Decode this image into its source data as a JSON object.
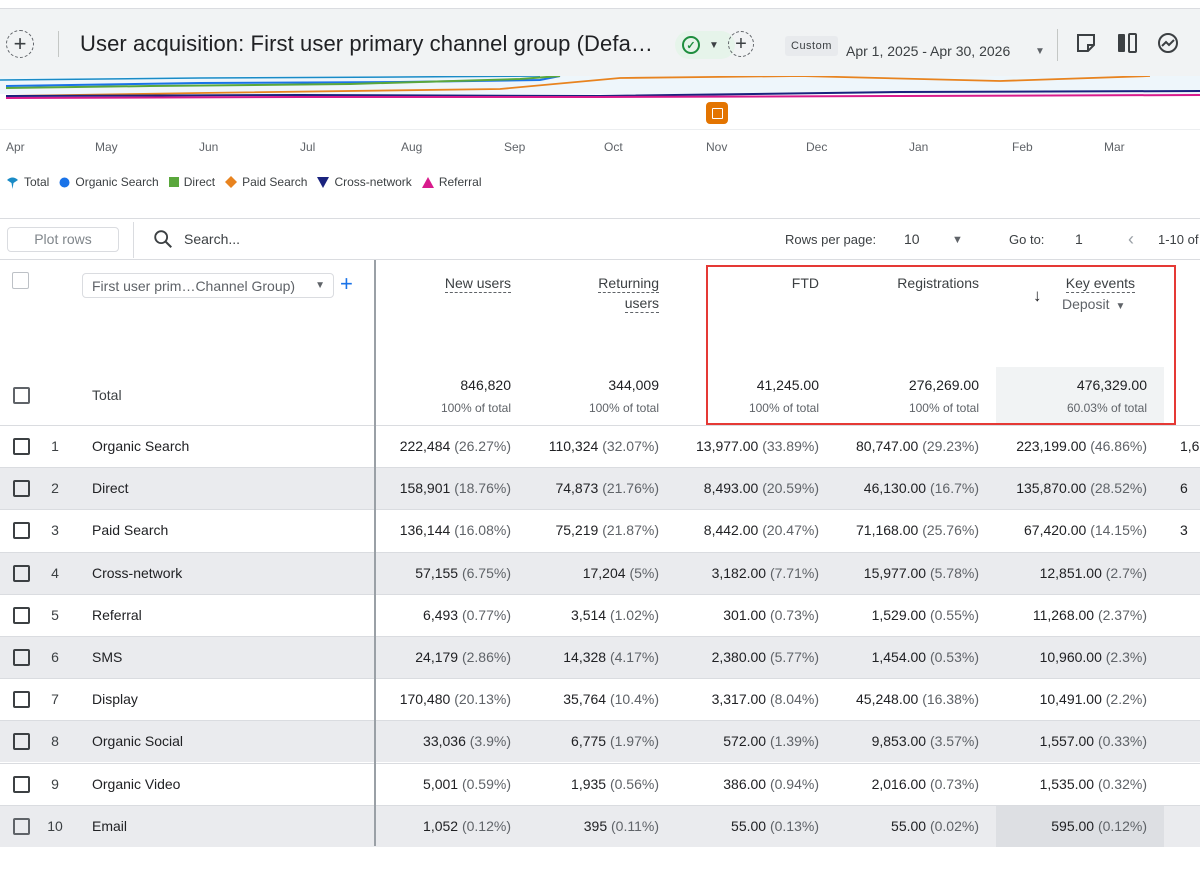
{
  "header": {
    "title": "User acquisition: First user primary channel group (Defa…",
    "date_chip": "Custom",
    "date_range": "Apr 1, 2025 - Apr 30, 2026"
  },
  "chart": {
    "months": [
      "Apr",
      "May",
      "Jun",
      "Jul",
      "Aug",
      "Sep",
      "Oct",
      "Nov",
      "Dec",
      "Jan",
      "Feb",
      "Mar"
    ],
    "legend": [
      {
        "name": "Total",
        "color": "#1a8bc6",
        "marker": "pin"
      },
      {
        "name": "Organic Search",
        "color": "#1a73e8",
        "marker": "circle"
      },
      {
        "name": "Direct",
        "color": "#5aa73c",
        "marker": "square"
      },
      {
        "name": "Paid Search",
        "color": "#e8831f",
        "marker": "diamond"
      },
      {
        "name": "Cross-network",
        "color": "#1a237e",
        "marker": "triangle-down"
      },
      {
        "name": "Referral",
        "color": "#d81b8c",
        "marker": "triangle-up"
      }
    ]
  },
  "toolbar": {
    "plot_rows": "Plot rows",
    "search_placeholder": "Search...",
    "rows_per_page_label": "Rows per page:",
    "rows_per_page_value": "10",
    "goto_label": "Go to:",
    "goto_value": "1",
    "page_range": "1-10 of"
  },
  "table": {
    "dimension_select": "First user prim…Channel Group)",
    "columns": {
      "new_users": "New users",
      "returning_users_1": "Returning",
      "returning_users_2": "users",
      "ftd": "FTD",
      "registrations": "Registrations",
      "key_events": "Key events",
      "key_events_select": "Deposit"
    },
    "total": {
      "label": "Total",
      "new_users": "846,820",
      "new_users_sub": "100% of total",
      "returning_users": "344,009",
      "returning_users_sub": "100% of total",
      "ftd": "41,245.00",
      "ftd_sub": "100% of total",
      "registrations": "276,269.00",
      "registrations_sub": "100% of total",
      "key_events": "476,329.00",
      "key_events_sub": "60.03% of total"
    },
    "rows": [
      {
        "idx": "1",
        "name": "Organic Search",
        "new_users": "222,484",
        "new_users_pct": "(26.27%)",
        "returning": "110,324",
        "returning_pct": "(32.07%)",
        "ftd": "13,977.00",
        "ftd_pct": "(33.89%)",
        "reg": "80,747.00",
        "reg_pct": "(29.23%)",
        "ke": "223,199.00",
        "ke_pct": "(46.86%)",
        "extra": "1,6"
      },
      {
        "idx": "2",
        "name": "Direct",
        "new_users": "158,901",
        "new_users_pct": "(18.76%)",
        "returning": "74,873",
        "returning_pct": "(21.76%)",
        "ftd": "8,493.00",
        "ftd_pct": "(20.59%)",
        "reg": "46,130.00",
        "reg_pct": "(16.7%)",
        "ke": "135,870.00",
        "ke_pct": "(28.52%)",
        "extra": "6"
      },
      {
        "idx": "3",
        "name": "Paid Search",
        "new_users": "136,144",
        "new_users_pct": "(16.08%)",
        "returning": "75,219",
        "returning_pct": "(21.87%)",
        "ftd": "8,442.00",
        "ftd_pct": "(20.47%)",
        "reg": "71,168.00",
        "reg_pct": "(25.76%)",
        "ke": "67,420.00",
        "ke_pct": "(14.15%)",
        "extra": "3"
      },
      {
        "idx": "4",
        "name": "Cross-network",
        "new_users": "57,155",
        "new_users_pct": "(6.75%)",
        "returning": "17,204",
        "returning_pct": "(5%)",
        "ftd": "3,182.00",
        "ftd_pct": "(7.71%)",
        "reg": "15,977.00",
        "reg_pct": "(5.78%)",
        "ke": "12,851.00",
        "ke_pct": "(2.7%)",
        "extra": ""
      },
      {
        "idx": "5",
        "name": "Referral",
        "new_users": "6,493",
        "new_users_pct": "(0.77%)",
        "returning": "3,514",
        "returning_pct": "(1.02%)",
        "ftd": "301.00",
        "ftd_pct": "(0.73%)",
        "reg": "1,529.00",
        "reg_pct": "(0.55%)",
        "ke": "11,268.00",
        "ke_pct": "(2.37%)",
        "extra": ""
      },
      {
        "idx": "6",
        "name": "SMS",
        "new_users": "24,179",
        "new_users_pct": "(2.86%)",
        "returning": "14,328",
        "returning_pct": "(4.17%)",
        "ftd": "2,380.00",
        "ftd_pct": "(5.77%)",
        "reg": "1,454.00",
        "reg_pct": "(0.53%)",
        "ke": "10,960.00",
        "ke_pct": "(2.3%)",
        "extra": ""
      },
      {
        "idx": "7",
        "name": "Display",
        "new_users": "170,480",
        "new_users_pct": "(20.13%)",
        "returning": "35,764",
        "returning_pct": "(10.4%)",
        "ftd": "3,317.00",
        "ftd_pct": "(8.04%)",
        "reg": "45,248.00",
        "reg_pct": "(16.38%)",
        "ke": "10,491.00",
        "ke_pct": "(2.2%)",
        "extra": ""
      },
      {
        "idx": "8",
        "name": "Organic Social",
        "new_users": "33,036",
        "new_users_pct": "(3.9%)",
        "returning": "6,775",
        "returning_pct": "(1.97%)",
        "ftd": "572.00",
        "ftd_pct": "(1.39%)",
        "reg": "9,853.00",
        "reg_pct": "(3.57%)",
        "ke": "1,557.00",
        "ke_pct": "(0.33%)",
        "extra": ""
      },
      {
        "idx": "9",
        "name": "Organic Video",
        "new_users": "5,001",
        "new_users_pct": "(0.59%)",
        "returning": "1,935",
        "returning_pct": "(0.56%)",
        "ftd": "386.00",
        "ftd_pct": "(0.94%)",
        "reg": "2,016.00",
        "reg_pct": "(0.73%)",
        "ke": "1,535.00",
        "ke_pct": "(0.32%)",
        "extra": ""
      },
      {
        "idx": "10",
        "name": "Email",
        "new_users": "1,052",
        "new_users_pct": "(0.12%)",
        "returning": "395",
        "returning_pct": "(0.11%)",
        "ftd": "55.00",
        "ftd_pct": "(0.13%)",
        "reg": "55.00",
        "reg_pct": "(0.02%)",
        "ke": "595.00",
        "ke_pct": "(0.12%)",
        "extra": ""
      }
    ]
  }
}
